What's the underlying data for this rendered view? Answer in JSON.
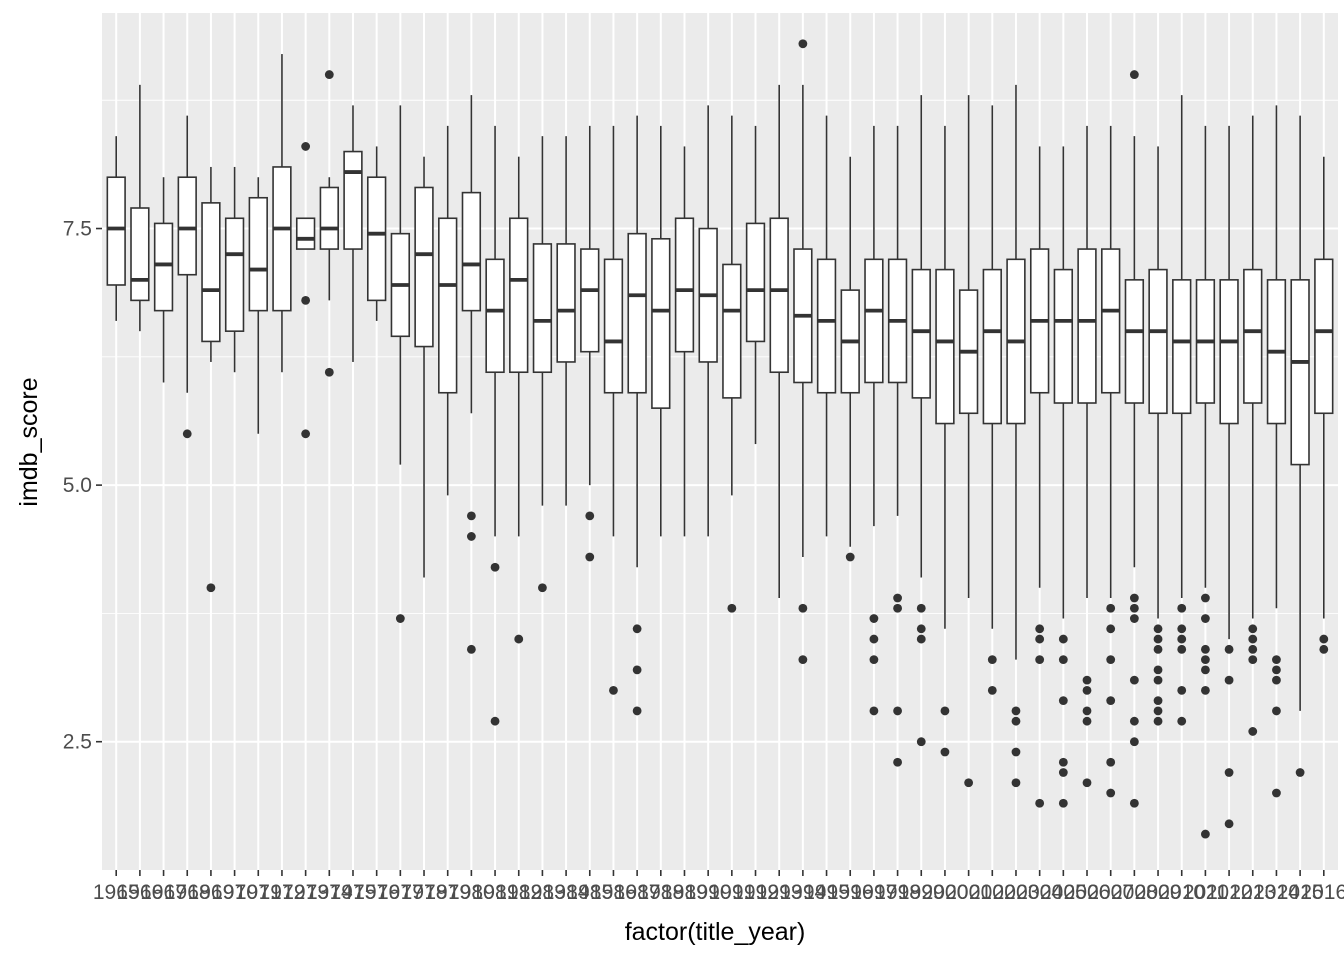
{
  "chart_data": {
    "type": "box",
    "xlabel": "factor(title_year)",
    "ylabel": "imdb_score",
    "ylim": [
      1.25,
      9.6
    ],
    "y_ticks": [
      2.5,
      5.0,
      7.5
    ],
    "y_tick_labels": [
      "2.5",
      "5.0",
      "7.5"
    ],
    "grid": true,
    "legend": "none",
    "colors": {
      "panel": "#ebebeb",
      "grid": "#ffffff",
      "box_fill": "#ffffff",
      "line": "#333333",
      "tick_text": "#4d4d4d"
    },
    "categories": [
      "1965",
      "1966",
      "1967",
      "1968",
      "1969",
      "1970",
      "1971",
      "1972",
      "1973",
      "1974",
      "1975",
      "1976",
      "1977",
      "1978",
      "1979",
      "1980",
      "1981",
      "1982",
      "1983",
      "1984",
      "1985",
      "1986",
      "1987",
      "1988",
      "1989",
      "1990",
      "1991",
      "1992",
      "1993",
      "1994",
      "1995",
      "1996",
      "1997",
      "1998",
      "1999",
      "2000",
      "2001",
      "2002",
      "2003",
      "2004",
      "2005",
      "2006",
      "2007",
      "2008",
      "2009",
      "2010",
      "2011",
      "2012",
      "2013",
      "2014",
      "2015",
      "2016"
    ],
    "boxes": [
      {
        "min": 6.6,
        "q1": 6.95,
        "median": 7.5,
        "q3": 8.0,
        "max": 8.4,
        "outliers": []
      },
      {
        "min": 6.5,
        "q1": 6.8,
        "median": 7.0,
        "q3": 7.7,
        "max": 8.9,
        "outliers": []
      },
      {
        "min": 6.0,
        "q1": 6.7,
        "median": 7.15,
        "q3": 7.55,
        "max": 8.0,
        "outliers": []
      },
      {
        "min": 5.9,
        "q1": 7.05,
        "median": 7.5,
        "q3": 8.0,
        "max": 8.6,
        "outliers": [
          5.5
        ]
      },
      {
        "min": 6.2,
        "q1": 6.4,
        "median": 6.9,
        "q3": 7.75,
        "max": 8.1,
        "outliers": [
          4.0
        ]
      },
      {
        "min": 6.1,
        "q1": 6.5,
        "median": 7.25,
        "q3": 7.6,
        "max": 8.1,
        "outliers": []
      },
      {
        "min": 5.5,
        "q1": 6.7,
        "median": 7.1,
        "q3": 7.8,
        "max": 8.0,
        "outliers": []
      },
      {
        "min": 6.1,
        "q1": 6.7,
        "median": 7.5,
        "q3": 8.1,
        "max": 9.2,
        "outliers": []
      },
      {
        "min": 7.3,
        "q1": 7.3,
        "median": 7.4,
        "q3": 7.6,
        "max": 7.6,
        "outliers": [
          8.3,
          6.8,
          5.5
        ]
      },
      {
        "min": 6.8,
        "q1": 7.3,
        "median": 7.5,
        "q3": 7.9,
        "max": 8.0,
        "outliers": [
          9.0,
          6.1
        ]
      },
      {
        "min": 6.2,
        "q1": 7.3,
        "median": 8.05,
        "q3": 8.25,
        "max": 8.7,
        "outliers": []
      },
      {
        "min": 6.6,
        "q1": 6.8,
        "median": 7.45,
        "q3": 8.0,
        "max": 8.3,
        "outliers": []
      },
      {
        "min": 5.2,
        "q1": 6.45,
        "median": 6.95,
        "q3": 7.45,
        "max": 8.7,
        "outliers": [
          3.7
        ]
      },
      {
        "min": 4.1,
        "q1": 6.35,
        "median": 7.25,
        "q3": 7.9,
        "max": 8.2,
        "outliers": []
      },
      {
        "min": 4.9,
        "q1": 5.9,
        "median": 6.95,
        "q3": 7.6,
        "max": 8.5,
        "outliers": []
      },
      {
        "min": 5.7,
        "q1": 6.7,
        "median": 7.15,
        "q3": 7.85,
        "max": 8.8,
        "outliers": [
          4.7,
          4.5,
          3.4
        ]
      },
      {
        "min": 4.5,
        "q1": 6.1,
        "median": 6.7,
        "q3": 7.2,
        "max": 8.5,
        "outliers": [
          4.2,
          2.7
        ]
      },
      {
        "min": 4.5,
        "q1": 6.1,
        "median": 7.0,
        "q3": 7.6,
        "max": 8.2,
        "outliers": [
          3.5
        ]
      },
      {
        "min": 4.8,
        "q1": 6.1,
        "median": 6.6,
        "q3": 7.35,
        "max": 8.4,
        "outliers": [
          4.0
        ]
      },
      {
        "min": 4.8,
        "q1": 6.2,
        "median": 6.7,
        "q3": 7.35,
        "max": 8.4,
        "outliers": []
      },
      {
        "min": 5.0,
        "q1": 6.3,
        "median": 6.9,
        "q3": 7.3,
        "max": 8.5,
        "outliers": [
          4.7,
          4.3
        ]
      },
      {
        "min": 4.5,
        "q1": 5.9,
        "median": 6.4,
        "q3": 7.2,
        "max": 8.5,
        "outliers": [
          3.0
        ]
      },
      {
        "min": 4.2,
        "q1": 5.9,
        "median": 6.85,
        "q3": 7.45,
        "max": 8.6,
        "outliers": [
          3.6,
          3.2,
          2.8
        ]
      },
      {
        "min": 4.5,
        "q1": 5.75,
        "median": 6.7,
        "q3": 7.4,
        "max": 8.5,
        "outliers": []
      },
      {
        "min": 4.5,
        "q1": 6.3,
        "median": 6.9,
        "q3": 7.6,
        "max": 8.3,
        "outliers": []
      },
      {
        "min": 4.5,
        "q1": 6.2,
        "median": 6.85,
        "q3": 7.5,
        "max": 8.7,
        "outliers": []
      },
      {
        "min": 4.9,
        "q1": 5.85,
        "median": 6.7,
        "q3": 7.15,
        "max": 8.6,
        "outliers": [
          3.8
        ]
      },
      {
        "min": 5.4,
        "q1": 6.4,
        "median": 6.9,
        "q3": 7.55,
        "max": 8.5,
        "outliers": []
      },
      {
        "min": 3.9,
        "q1": 6.1,
        "median": 6.9,
        "q3": 7.6,
        "max": 8.9,
        "outliers": []
      },
      {
        "min": 4.3,
        "q1": 6.0,
        "median": 6.65,
        "q3": 7.3,
        "max": 8.9,
        "outliers": [
          9.3,
          3.8,
          3.3
        ]
      },
      {
        "min": 4.5,
        "q1": 5.9,
        "median": 6.6,
        "q3": 7.2,
        "max": 8.6,
        "outliers": []
      },
      {
        "min": 4.4,
        "q1": 5.9,
        "median": 6.4,
        "q3": 6.9,
        "max": 8.2,
        "outliers": [
          4.3
        ]
      },
      {
        "min": 4.6,
        "q1": 6.0,
        "median": 6.7,
        "q3": 7.2,
        "max": 8.5,
        "outliers": [
          3.7,
          3.5,
          3.3,
          2.8
        ]
      },
      {
        "min": 4.7,
        "q1": 6.0,
        "median": 6.6,
        "q3": 7.2,
        "max": 8.5,
        "outliers": [
          3.9,
          3.8,
          2.8,
          2.3
        ]
      },
      {
        "min": 4.1,
        "q1": 5.85,
        "median": 6.5,
        "q3": 7.1,
        "max": 8.8,
        "outliers": [
          3.8,
          3.6,
          3.5,
          2.5
        ]
      },
      {
        "min": 3.6,
        "q1": 5.6,
        "median": 6.4,
        "q3": 7.1,
        "max": 8.5,
        "outliers": [
          2.8,
          2.4
        ]
      },
      {
        "min": 3.9,
        "q1": 5.7,
        "median": 6.3,
        "q3": 6.9,
        "max": 8.8,
        "outliers": [
          2.1
        ]
      },
      {
        "min": 3.6,
        "q1": 5.6,
        "median": 6.5,
        "q3": 7.1,
        "max": 8.7,
        "outliers": [
          3.3,
          3.0
        ]
      },
      {
        "min": 3.3,
        "q1": 5.6,
        "median": 6.4,
        "q3": 7.2,
        "max": 8.9,
        "outliers": [
          2.8,
          2.7,
          2.4,
          2.1
        ]
      },
      {
        "min": 4.0,
        "q1": 5.9,
        "median": 6.6,
        "q3": 7.3,
        "max": 8.3,
        "outliers": [
          3.6,
          3.5,
          3.3,
          1.9
        ]
      },
      {
        "min": 3.7,
        "q1": 5.8,
        "median": 6.6,
        "q3": 7.1,
        "max": 8.3,
        "outliers": [
          3.5,
          3.3,
          2.9,
          2.3,
          2.2,
          1.9
        ]
      },
      {
        "min": 3.9,
        "q1": 5.8,
        "median": 6.6,
        "q3": 7.3,
        "max": 8.5,
        "outliers": [
          3.1,
          3.0,
          2.8,
          2.7,
          2.1
        ]
      },
      {
        "min": 3.9,
        "q1": 5.9,
        "median": 6.7,
        "q3": 7.3,
        "max": 8.5,
        "outliers": [
          3.8,
          3.6,
          3.3,
          2.9,
          2.3,
          2.0
        ]
      },
      {
        "min": 4.2,
        "q1": 5.8,
        "median": 6.5,
        "q3": 7.0,
        "max": 8.4,
        "outliers": [
          9.0,
          3.9,
          3.8,
          3.7,
          3.1,
          2.7,
          2.5,
          1.9
        ]
      },
      {
        "min": 3.7,
        "q1": 5.7,
        "median": 6.5,
        "q3": 7.1,
        "max": 8.3,
        "outliers": [
          3.6,
          3.5,
          3.4,
          3.2,
          3.1,
          2.9,
          2.8,
          2.7
        ]
      },
      {
        "min": 3.9,
        "q1": 5.7,
        "median": 6.4,
        "q3": 7.0,
        "max": 8.8,
        "outliers": [
          3.8,
          3.6,
          3.5,
          3.4,
          3.0,
          2.7
        ]
      },
      {
        "min": 4.0,
        "q1": 5.8,
        "median": 6.4,
        "q3": 7.0,
        "max": 8.5,
        "outliers": [
          3.9,
          3.7,
          3.4,
          3.3,
          3.2,
          3.0,
          1.6
        ]
      },
      {
        "min": 3.5,
        "q1": 5.6,
        "median": 6.4,
        "q3": 7.0,
        "max": 8.5,
        "outliers": [
          3.4,
          3.1,
          2.2,
          1.7
        ]
      },
      {
        "min": 3.7,
        "q1": 5.8,
        "median": 6.5,
        "q3": 7.1,
        "max": 8.6,
        "outliers": [
          3.6,
          3.5,
          3.4,
          3.3,
          2.6
        ]
      },
      {
        "min": 3.8,
        "q1": 5.6,
        "median": 6.3,
        "q3": 7.0,
        "max": 8.7,
        "outliers": [
          3.3,
          3.2,
          3.1,
          2.8,
          2.0
        ]
      },
      {
        "min": 2.8,
        "q1": 5.2,
        "median": 6.2,
        "q3": 7.0,
        "max": 8.6,
        "outliers": [
          2.2
        ]
      },
      {
        "min": 3.7,
        "q1": 5.7,
        "median": 6.5,
        "q3": 7.2,
        "max": 8.2,
        "outliers": [
          3.5,
          3.4
        ]
      }
    ]
  }
}
